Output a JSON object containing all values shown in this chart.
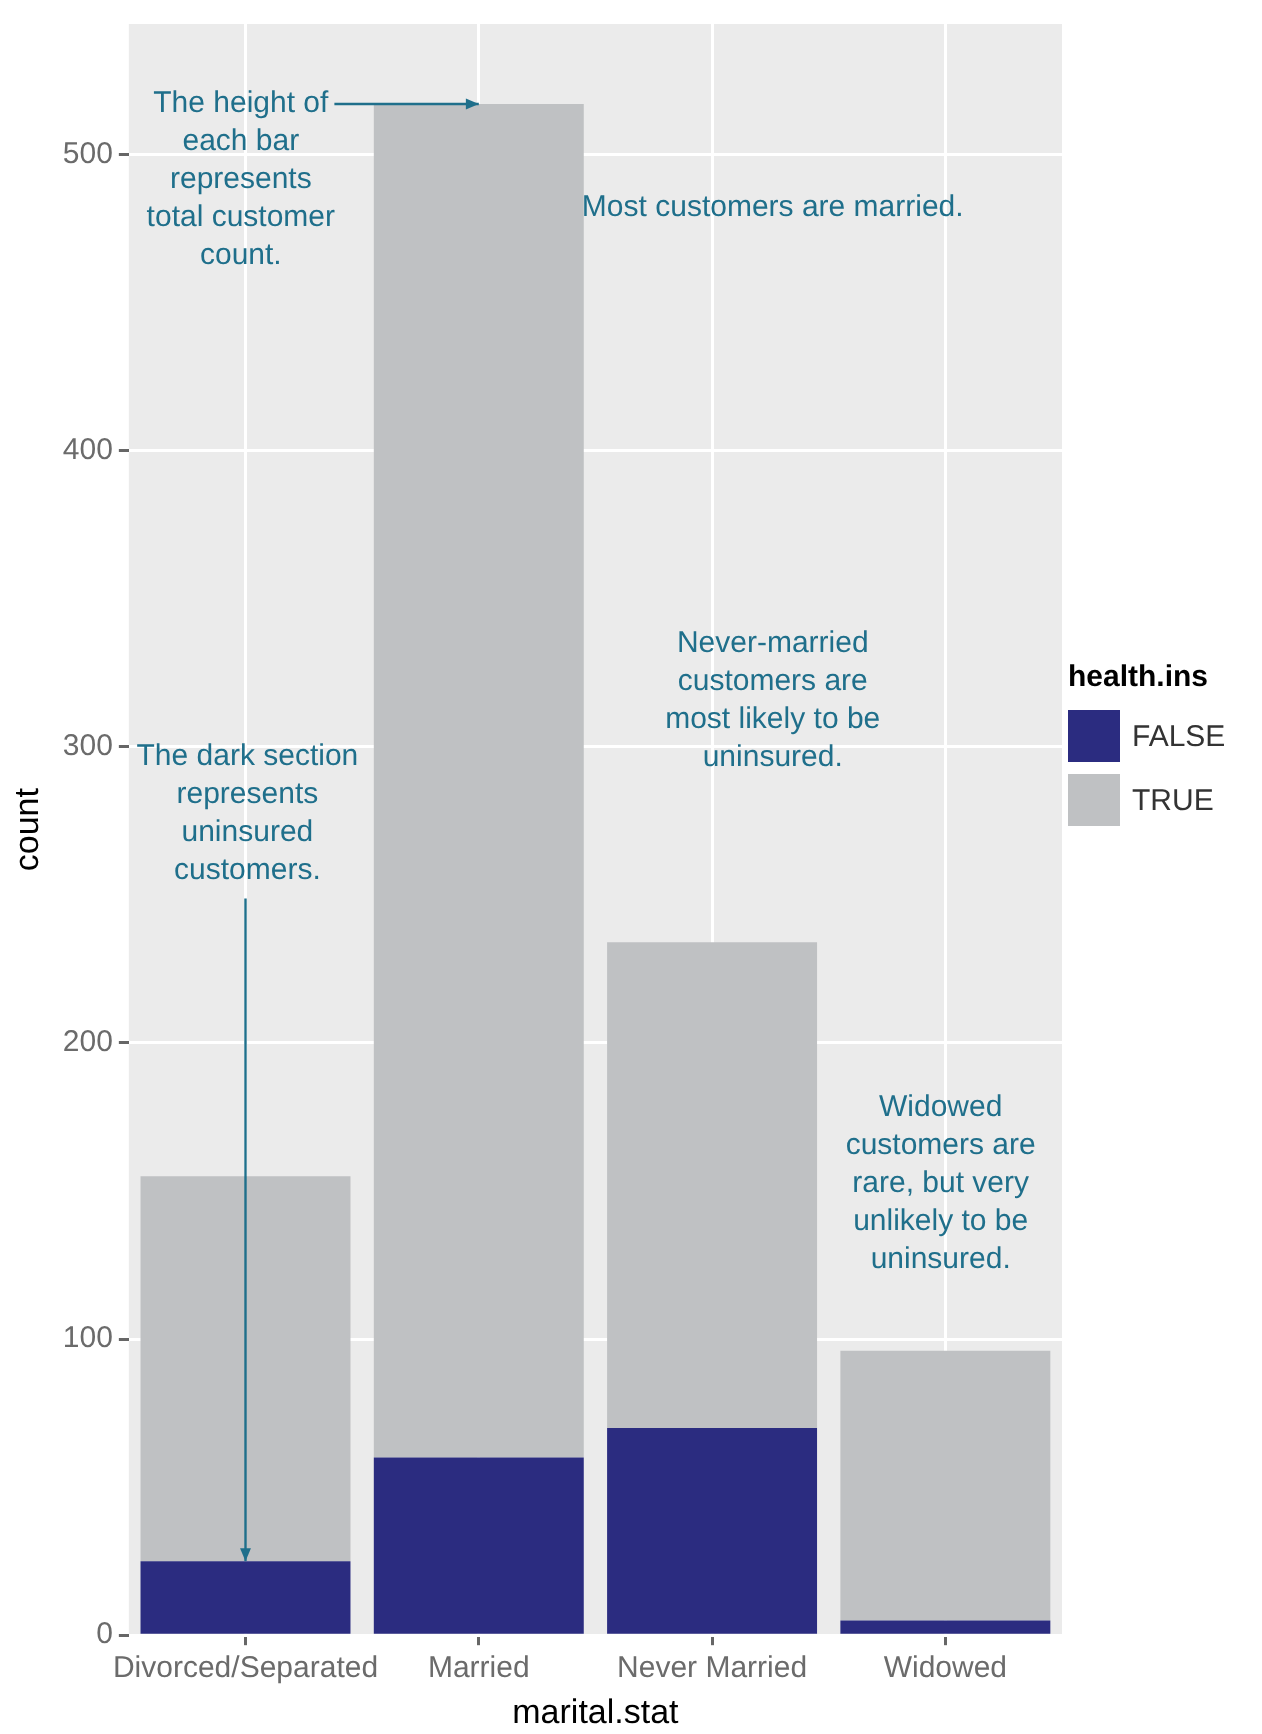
{
  "chart_data": {
    "type": "bar",
    "stacked": true,
    "xlabel": "marital.stat",
    "ylabel": "count",
    "legend_title": "health.ins",
    "legend": "right",
    "grid": true,
    "categories": [
      "Divorced/Separated",
      "Married",
      "Never Married",
      "Widowed"
    ],
    "series": [
      {
        "name": "FALSE",
        "color": "#2b2c80",
        "values": [
          25,
          60,
          70,
          5
        ]
      },
      {
        "name": "TRUE",
        "color": "#bfc1c3",
        "values": [
          130,
          457,
          164,
          91
        ]
      }
    ],
    "ylim": [
      0,
      544
    ],
    "yticks": [
      0,
      100,
      200,
      300,
      400,
      500
    ],
    "annotations": [
      {
        "text": "The height of\neach bar\nrepresents\ntotal customer\ncount.",
        "x": "Married",
        "y": 517
      },
      "Most customers are married.",
      "Never-married\ncustomers are\nmost likely to be\nuninsured.",
      {
        "text": "The dark section\nrepresents\nuninsured\ncustomers.",
        "x": "Divorced/Separated",
        "y": 25
      },
      "Widowed\ncustomers are\nrare, but very\nunlikely to be\nuninsured."
    ]
  }
}
